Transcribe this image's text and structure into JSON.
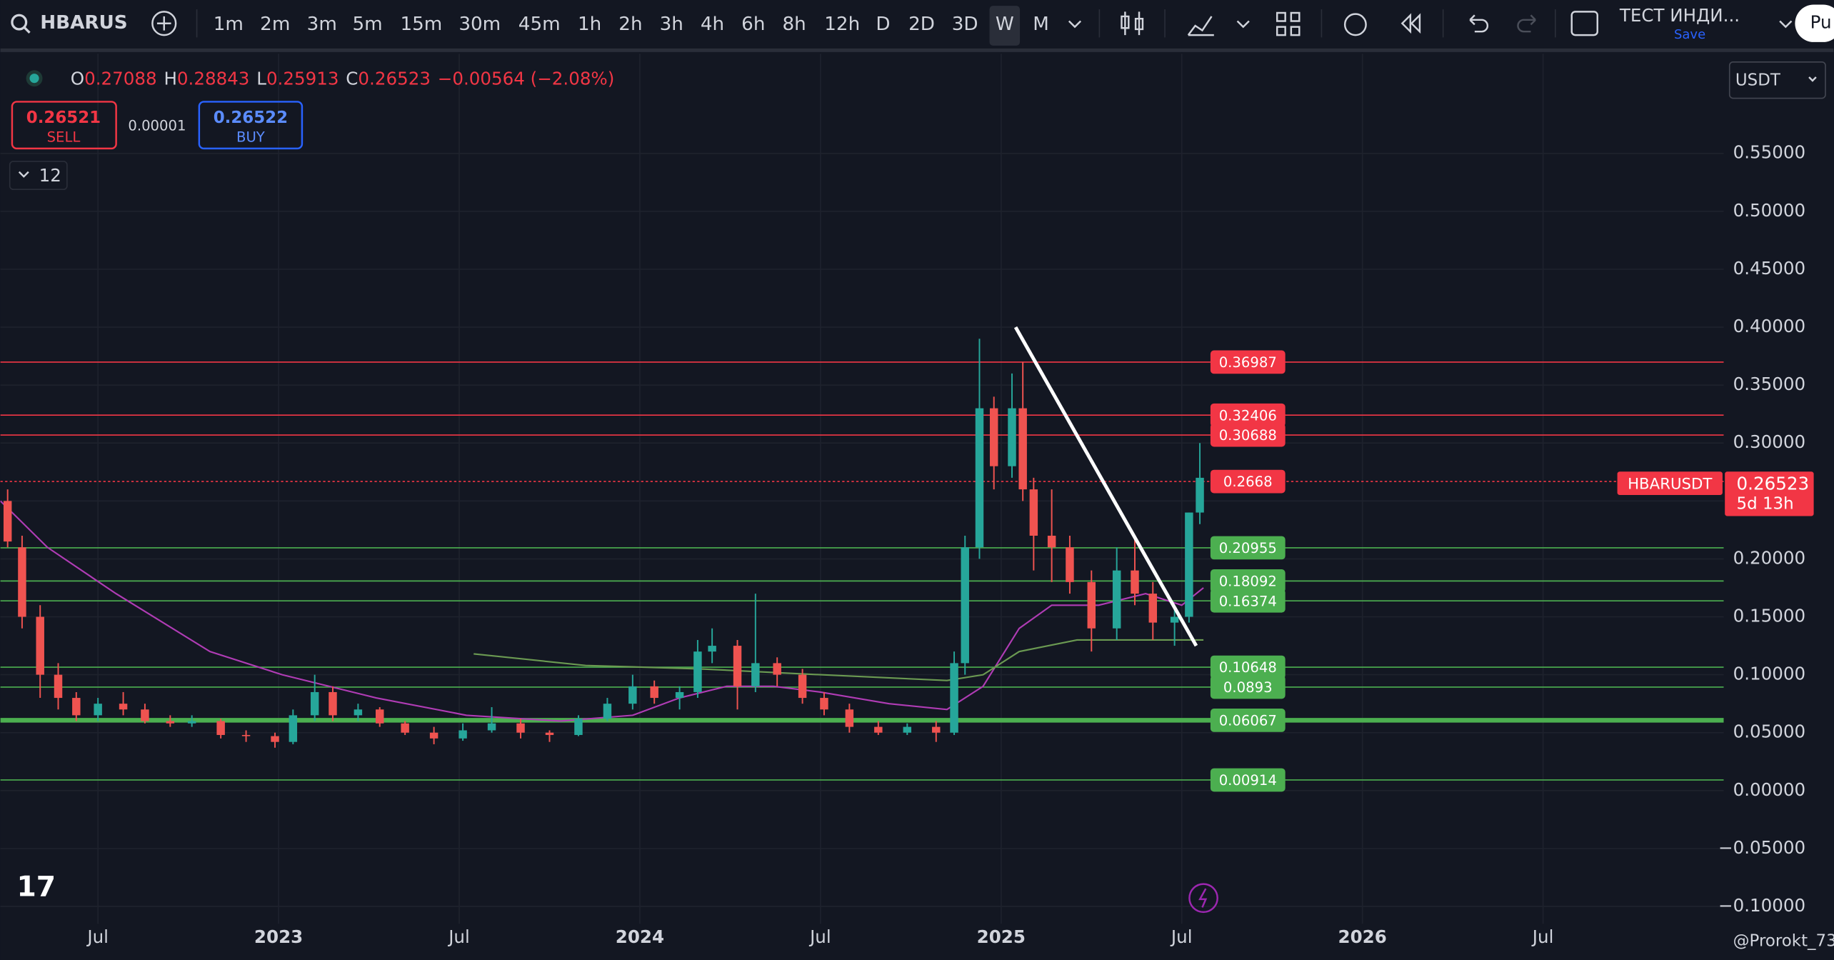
{
  "toolbar": {
    "symbol": "HBARUS",
    "timeframes": [
      "1m",
      "2m",
      "3m",
      "5m",
      "15m",
      "30m",
      "45m",
      "1h",
      "2h",
      "3h",
      "4h",
      "6h",
      "8h",
      "12h",
      "D",
      "2D",
      "3D",
      "W",
      "M"
    ],
    "active": "W",
    "layout_name": "ТЕСТ ИНДИ...",
    "save": "Save",
    "account": "Pu"
  },
  "legend": {
    "items": [
      {
        "letter": "O",
        "value": "0.27088"
      },
      {
        "letter": "H",
        "value": "0.28843"
      },
      {
        "letter": "L",
        "value": "0.25913"
      },
      {
        "letter": "C",
        "value": "0.26523"
      }
    ],
    "change": "−0.00564 (−2.08%)"
  },
  "trade": {
    "sell_price": "0.26521",
    "sell": "SELL",
    "spread": "0.00001",
    "buy_price": "0.26522",
    "buy": "BUY"
  },
  "indicators_count": "12",
  "currency": "USDT",
  "watermark": "@Prorokt_73",
  "chart_data": {
    "type": "candlestick",
    "xlim": [
      2022.23,
      2027.0
    ],
    "ylim": [
      -0.12,
      0.638
    ],
    "xticks": [
      {
        "value": 2022.5,
        "label": "Jul"
      },
      2023,
      {
        "value": 2023.5,
        "label": "Jul"
      },
      2024,
      {
        "value": 2024.5,
        "label": "Jul"
      },
      2025,
      {
        "value": 2025.5,
        "label": "Jul"
      },
      2026,
      {
        "value": 2026.5,
        "label": "Jul"
      }
    ],
    "yticks": [
      {
        "value": 0.55,
        "label": "0.55000"
      },
      {
        "value": 0.5,
        "label": "0.50000"
      },
      {
        "value": 0.45,
        "label": "0.45000"
      },
      {
        "value": 0.4,
        "label": "0.40000"
      },
      {
        "value": 0.35,
        "label": "0.35000"
      },
      {
        "value": 0.3,
        "label": "0.30000"
      },
      {
        "value": 0.25,
        "label": "0.25000"
      },
      {
        "value": 0.2,
        "label": "0.20000"
      },
      {
        "value": 0.15,
        "label": "0.15000"
      },
      {
        "value": 0.1,
        "label": "0.10000"
      },
      {
        "value": 0.05,
        "label": "0.05000"
      },
      {
        "value": 0,
        "label": "0.00000"
      },
      {
        "value": -0.05,
        "label": "−0.05000"
      },
      {
        "value": -0.1,
        "label": "−0.10000"
      }
    ],
    "grid": true,
    "series": [
      {
        "up_color": "#26a69a",
        "down_color": "#ef5350",
        "x": [
          2022.25,
          2022.29,
          2022.34,
          2022.39,
          2022.44,
          2022.5,
          2022.57,
          2022.63,
          2022.7,
          2022.76,
          2022.84,
          2022.91,
          2022.99,
          2023.04,
          2023.1,
          2023.15,
          2023.22,
          2023.28,
          2023.35,
          2023.43,
          2023.51,
          2023.59,
          2023.67,
          2023.75,
          2023.83,
          2023.91,
          2023.98,
          2024.04,
          2024.11,
          2024.16,
          2024.2,
          2024.27,
          2024.32,
          2024.38,
          2024.45,
          2024.51,
          2024.58,
          2024.66,
          2024.74,
          2024.82,
          2024.87,
          2024.9,
          2024.94,
          2024.98,
          2025.03,
          2025.06,
          2025.09,
          2025.14,
          2025.19,
          2025.25,
          2025.32,
          2025.37,
          2025.42,
          2025.48,
          2025.52,
          2025.55
        ],
        "open": [
          0.25,
          0.21,
          0.15,
          0.1,
          0.08,
          0.065,
          0.075,
          0.07,
          0.06,
          0.058,
          0.06,
          0.048,
          0.047,
          0.042,
          0.065,
          0.085,
          0.065,
          0.07,
          0.058,
          0.05,
          0.045,
          0.052,
          0.058,
          0.05,
          0.048,
          0.062,
          0.075,
          0.09,
          0.08,
          0.085,
          0.12,
          0.125,
          0.09,
          0.11,
          0.1,
          0.08,
          0.07,
          0.055,
          0.05,
          0.055,
          0.05,
          0.11,
          0.21,
          0.33,
          0.28,
          0.33,
          0.26,
          0.22,
          0.21,
          0.18,
          0.14,
          0.19,
          0.17,
          0.145,
          0.15,
          0.24
        ],
        "high": [
          0.26,
          0.22,
          0.16,
          0.11,
          0.085,
          0.08,
          0.085,
          0.075,
          0.065,
          0.065,
          0.062,
          0.052,
          0.05,
          0.07,
          0.1,
          0.09,
          0.075,
          0.072,
          0.06,
          0.055,
          0.058,
          0.072,
          0.062,
          0.052,
          0.065,
          0.08,
          0.1,
          0.095,
          0.09,
          0.13,
          0.14,
          0.13,
          0.17,
          0.115,
          0.105,
          0.085,
          0.075,
          0.06,
          0.058,
          0.06,
          0.12,
          0.22,
          0.39,
          0.34,
          0.36,
          0.37,
          0.27,
          0.26,
          0.22,
          0.19,
          0.21,
          0.22,
          0.18,
          0.16,
          0.24,
          0.3
        ],
        "low": [
          0.21,
          0.14,
          0.08,
          0.07,
          0.06,
          0.06,
          0.065,
          0.058,
          0.055,
          0.055,
          0.045,
          0.042,
          0.037,
          0.04,
          0.06,
          0.06,
          0.06,
          0.055,
          0.048,
          0.04,
          0.043,
          0.05,
          0.045,
          0.042,
          0.047,
          0.06,
          0.07,
          0.075,
          0.07,
          0.08,
          0.11,
          0.07,
          0.085,
          0.09,
          0.075,
          0.065,
          0.05,
          0.048,
          0.048,
          0.042,
          0.048,
          0.1,
          0.2,
          0.26,
          0.27,
          0.25,
          0.19,
          0.18,
          0.17,
          0.12,
          0.13,
          0.16,
          0.13,
          0.125,
          0.145,
          0.23
        ],
        "close": [
          0.215,
          0.15,
          0.1,
          0.08,
          0.065,
          0.075,
          0.07,
          0.06,
          0.058,
          0.06,
          0.048,
          0.047,
          0.042,
          0.065,
          0.085,
          0.065,
          0.07,
          0.058,
          0.05,
          0.045,
          0.052,
          0.058,
          0.05,
          0.048,
          0.062,
          0.075,
          0.09,
          0.08,
          0.085,
          0.12,
          0.125,
          0.09,
          0.11,
          0.1,
          0.08,
          0.07,
          0.055,
          0.05,
          0.055,
          0.05,
          0.11,
          0.21,
          0.33,
          0.28,
          0.33,
          0.26,
          0.22,
          0.21,
          0.18,
          0.14,
          0.19,
          0.17,
          0.145,
          0.15,
          0.24,
          0.27
        ]
      }
    ],
    "lines": [
      {
        "color": "#b03cb5",
        "x": [
          2022.23,
          2022.36,
          2022.55,
          2022.81,
          2023.01,
          2023.27,
          2023.52,
          2023.78,
          2023.98,
          2024.11,
          2024.24,
          2024.37,
          2024.5,
          2024.69,
          2024.85,
          2024.95,
          2025.05,
          2025.14,
          2025.27,
          2025.4,
          2025.5,
          2025.56
        ],
        "values": [
          0.25,
          0.21,
          0.17,
          0.12,
          0.1,
          0.08,
          0.065,
          0.06,
          0.065,
          0.08,
          0.09,
          0.09,
          0.085,
          0.075,
          0.07,
          0.09,
          0.14,
          0.16,
          0.16,
          0.17,
          0.16,
          0.175
        ]
      },
      {
        "color": "#6b9a52",
        "x": [
          2023.54,
          2023.85,
          2024.17,
          2024.5,
          2024.85,
          2024.95,
          2025.05,
          2025.21,
          2025.4,
          2025.56
        ],
        "values": [
          0.118,
          0.108,
          0.105,
          0.1,
          0.095,
          0.1,
          0.12,
          0.13,
          0.13,
          0.13
        ]
      }
    ],
    "levels": [
      {
        "value": 0.36987,
        "color": "#f23645"
      },
      {
        "value": 0.32406,
        "color": "#f23645"
      },
      {
        "value": 0.30688,
        "color": "#f23645"
      },
      {
        "value": 0.2668,
        "color": "#f23645",
        "style": "dotted"
      },
      {
        "value": 0.20955,
        "color": "#4caf50"
      },
      {
        "value": 0.18092,
        "color": "#4caf50"
      },
      {
        "value": 0.16374,
        "color": "#4caf50"
      },
      {
        "value": 0.10648,
        "color": "#4caf50"
      },
      {
        "value": 0.0893,
        "color": "#4caf50"
      },
      {
        "value": 0.06067,
        "color": "#4caf50",
        "width": 4
      },
      {
        "value": 0.00914,
        "color": "#4caf50"
      }
    ],
    "trend_line": {
      "color": "#ffffff",
      "x": [
        2025.04,
        2025.54
      ],
      "values": [
        0.4,
        0.125
      ]
    },
    "last_price": {
      "symbol": "HBARUSDT",
      "value": 0.26523,
      "countdown": "5d 13h",
      "color": "#f23645"
    }
  }
}
